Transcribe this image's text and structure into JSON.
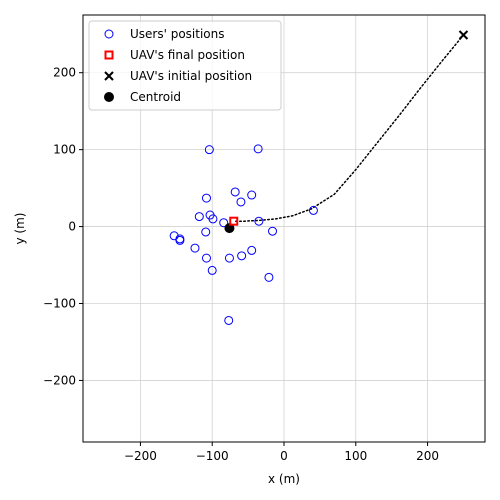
{
  "chart_data": {
    "type": "scatter",
    "xlabel": "x (m)",
    "ylabel": "y (m)",
    "xlim": [
      -280,
      280
    ],
    "ylim": [
      -280,
      275
    ],
    "xticks": [
      -200,
      -100,
      0,
      100,
      200
    ],
    "yticks": [
      -200,
      -100,
      0,
      100,
      200
    ],
    "grid": true,
    "legend_position": "top-left",
    "series": [
      {
        "name": "Users' positions",
        "marker": "open-circle",
        "color": "#0000ff",
        "points": [
          [
            -104,
            100
          ],
          [
            -36,
            101
          ],
          [
            -108,
            37
          ],
          [
            -68,
            45
          ],
          [
            -45,
            41
          ],
          [
            -60,
            32
          ],
          [
            -103,
            15
          ],
          [
            -118,
            13
          ],
          [
            -99,
            10
          ],
          [
            -84,
            5
          ],
          [
            -35,
            7
          ],
          [
            -16,
            -6
          ],
          [
            -109,
            -7
          ],
          [
            -153,
            -12
          ],
          [
            -145,
            -16
          ],
          [
            -145,
            -18
          ],
          [
            -124,
            -28
          ],
          [
            -45,
            -31
          ],
          [
            -108,
            -41
          ],
          [
            -76,
            -41
          ],
          [
            -59,
            -38
          ],
          [
            -100,
            -57
          ],
          [
            -21,
            -66
          ],
          [
            -77,
            -122
          ],
          [
            41,
            21
          ]
        ]
      },
      {
        "name": "UAV's final position",
        "marker": "open-square",
        "color": "#ff0000",
        "points": [
          [
            -70,
            7
          ]
        ]
      },
      {
        "name": "UAV's initial position",
        "marker": "x",
        "color": "#000000",
        "points": [
          [
            250,
            249
          ]
        ]
      },
      {
        "name": "Centroid",
        "marker": "filled-circle",
        "color": "#000000",
        "points": [
          [
            -76,
            -2
          ]
        ]
      }
    ],
    "trajectory": {
      "style": "dotted",
      "color": "#000000",
      "points": [
        [
          250,
          249
        ],
        [
          220,
          215
        ],
        [
          190,
          180
        ],
        [
          160,
          144
        ],
        [
          130,
          109
        ],
        [
          100,
          74
        ],
        [
          70,
          42
        ],
        [
          38,
          23
        ],
        [
          12,
          14
        ],
        [
          -12,
          10
        ],
        [
          -35,
          8
        ],
        [
          -55,
          7
        ],
        [
          -70,
          7
        ]
      ]
    }
  }
}
